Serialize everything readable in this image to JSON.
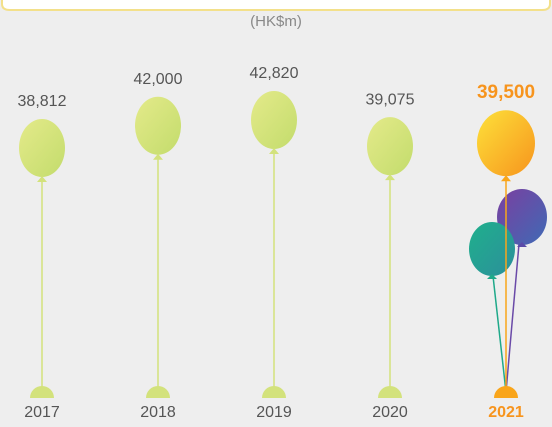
{
  "chart_data": {
    "type": "balloon",
    "subtitle": "(HK$m)",
    "categories": [
      "2017",
      "2018",
      "2019",
      "2020",
      "2021"
    ],
    "values": [
      38812,
      42000,
      42820,
      39075,
      39500
    ],
    "value_labels": [
      "38,812",
      "42,000",
      "42,820",
      "39,075",
      "39,500"
    ],
    "colors": [
      "#d3e27c",
      "#d3e27c",
      "#d3e27c",
      "#d3e27c",
      "#f9a51a"
    ],
    "label_colors": [
      "#555555",
      "#555555",
      "#555555",
      "#555555",
      "#f7941d"
    ]
  }
}
